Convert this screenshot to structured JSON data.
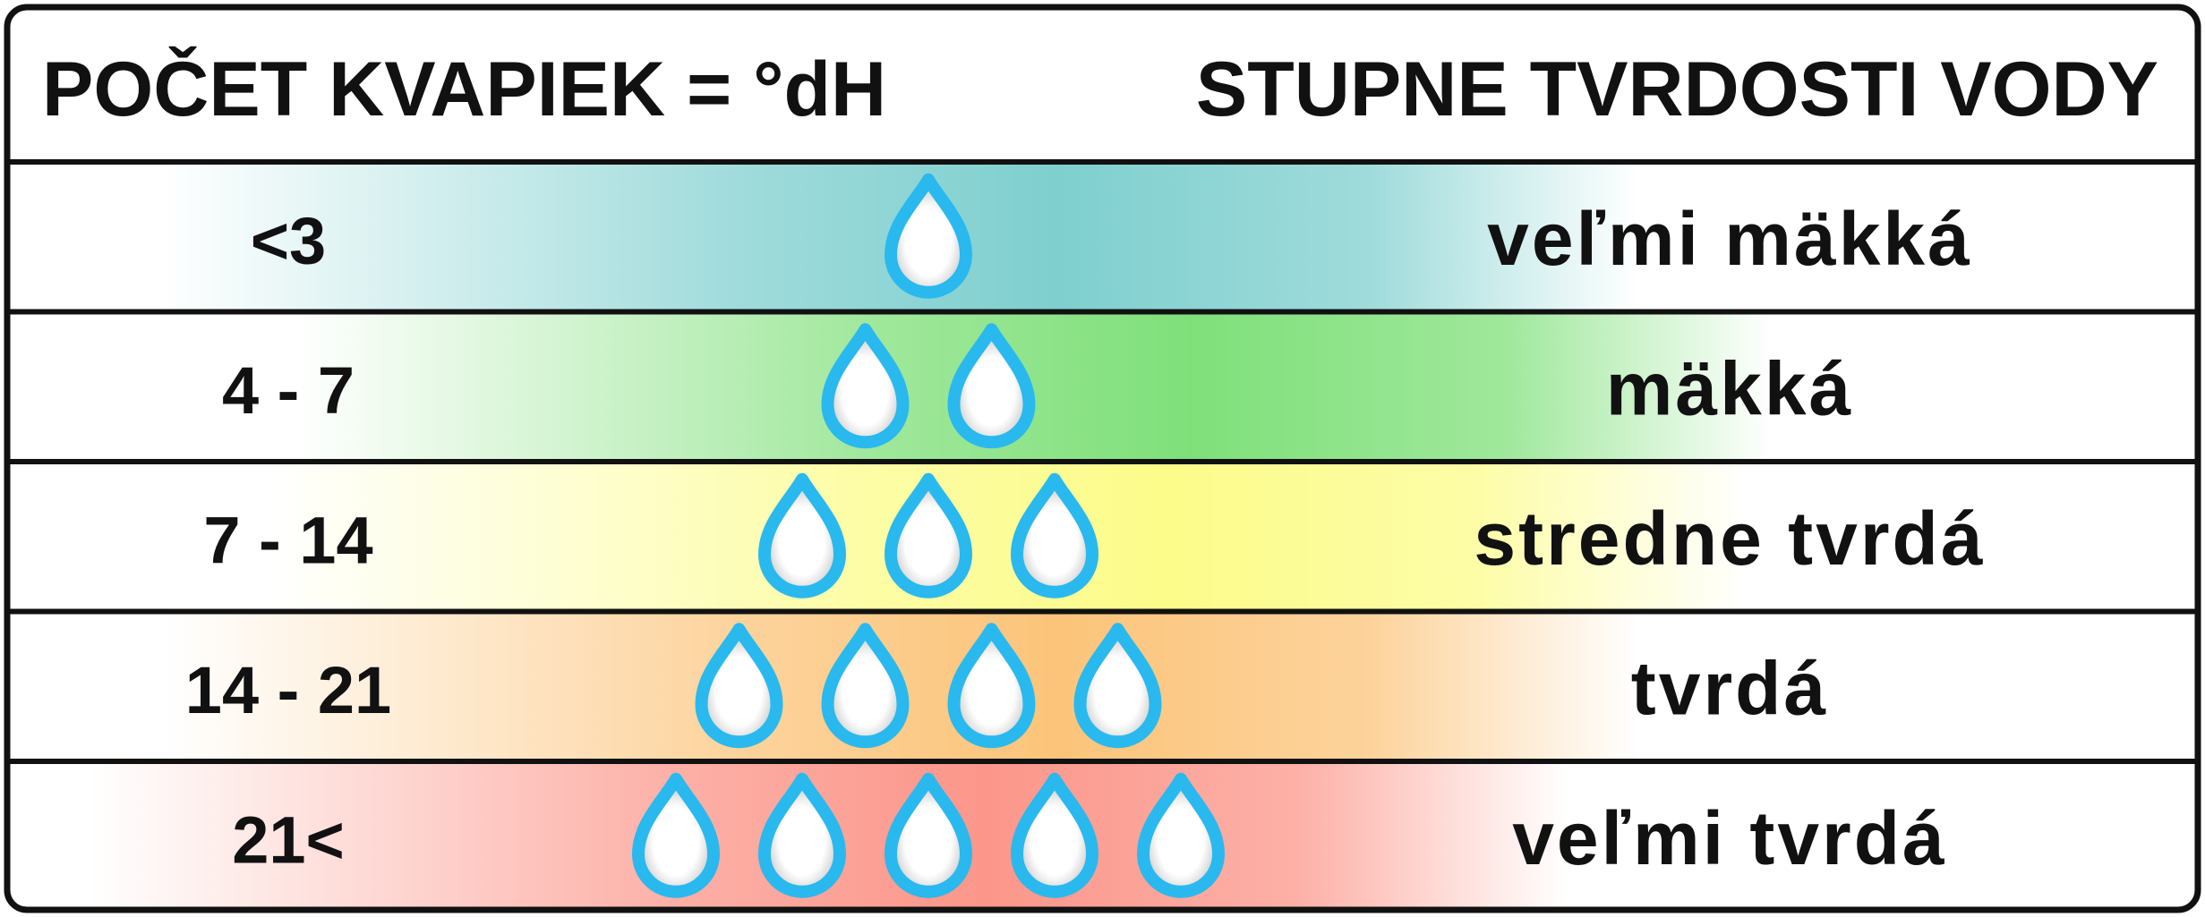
{
  "header": {
    "left": "POČET KVAPIEK = °dH",
    "right": "STUPNE TVRDOSTI VODY"
  },
  "rows": [
    {
      "range": "<3",
      "label": "veľmi mäkká",
      "color": "#7fcfcf"
    },
    {
      "range": "4 - 7",
      "label": "mäkká",
      "color": "#7fe07a"
    },
    {
      "range": "7 - 14",
      "label": "stredne tvrdá",
      "color": "#fcfc8a"
    },
    {
      "range": "14 - 21",
      "label": "tvrdá",
      "color": "#fcc47a"
    },
    {
      "range": "21<",
      "label": "veľmi tvrdá",
      "color": "#fc968a"
    }
  ]
}
